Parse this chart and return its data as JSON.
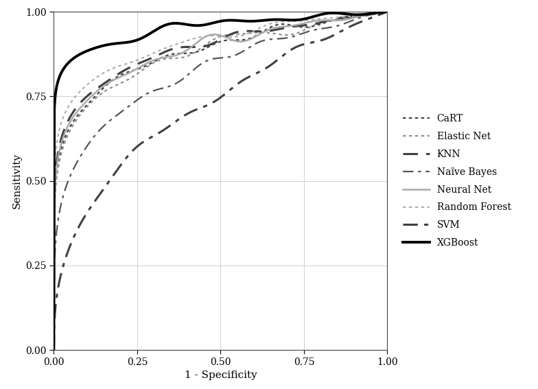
{
  "title": "",
  "xlabel": "1 - Specificity",
  "ylabel": "Sensitivity",
  "xlim": [
    0,
    1
  ],
  "ylim": [
    0,
    1
  ],
  "xticks": [
    0.0,
    0.25,
    0.5,
    0.75,
    1.0
  ],
  "yticks": [
    0.0,
    0.25,
    0.5,
    0.75,
    1.0
  ],
  "background_color": "#ffffff",
  "grid_color": "#d0d0d0",
  "curve_configs": [
    {
      "name": "CaRT",
      "color": "#404040",
      "linestyle": "dotted",
      "linewidth": 1.6,
      "auc": 0.88,
      "seed": 10
    },
    {
      "name": "Elastic Net",
      "color": "#909090",
      "linestyle": "dotted",
      "linewidth": 1.6,
      "auc": 0.875,
      "seed": 20
    },
    {
      "name": "KNN",
      "color": "#404040",
      "linestyle": "dashed",
      "linewidth": 2.2,
      "auc": 0.89,
      "seed": 30
    },
    {
      "name": "Naïve Bayes",
      "color": "#555555",
      "linestyle": "dashdot",
      "linewidth": 1.6,
      "auc": 0.82,
      "seed": 40
    },
    {
      "name": "Neural Net",
      "color": "#aaaaaa",
      "linestyle": "solid",
      "linewidth": 1.8,
      "auc": 0.885,
      "seed": 50
    },
    {
      "name": "Random Forest",
      "color": "#b0b0b0",
      "linestyle": "dotted",
      "linewidth": 1.6,
      "auc": 0.905,
      "seed": 60
    },
    {
      "name": "SVM",
      "color": "#404040",
      "linestyle": "dashdot",
      "linewidth": 2.2,
      "auc": 0.72,
      "seed": 70
    },
    {
      "name": "XGBoost",
      "color": "#000000",
      "linestyle": "solid",
      "linewidth": 2.8,
      "auc": 0.95,
      "seed": 80
    }
  ],
  "legend_fontsize": 10,
  "axis_fontsize": 11,
  "tick_fontsize": 10
}
